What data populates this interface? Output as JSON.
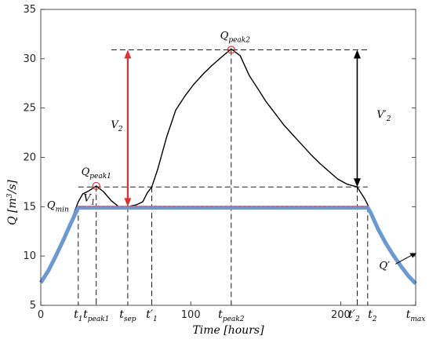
{
  "chart_data": {
    "type": "line",
    "xlabel": "Time [hours]",
    "ylabel": "Q [m³/s]",
    "xlim": [
      0,
      250
    ],
    "ylim": [
      5,
      35
    ],
    "y_ticks": [
      5,
      10,
      15,
      20,
      25,
      30,
      35
    ],
    "x_tick_labels": [
      {
        "x": 0,
        "text": "0"
      },
      {
        "x": 25,
        "text": "t1"
      },
      {
        "x": 37,
        "text": "tpeak1"
      },
      {
        "x": 58,
        "text": "tsep"
      },
      {
        "x": 74,
        "text": "t'1"
      },
      {
        "x": 100,
        "text": "100"
      },
      {
        "x": 127,
        "text": "tpeak2"
      },
      {
        "x": 200,
        "text": "200"
      },
      {
        "x": 211,
        "text": "t'2"
      },
      {
        "x": 218,
        "text": "t2"
      },
      {
        "x": 250,
        "text": "tmax"
      }
    ],
    "series": [
      {
        "color": "#000000",
        "x": [
          0,
          5,
          10,
          15,
          20,
          25,
          28,
          32,
          37,
          42,
          47,
          52,
          58,
          64,
          68,
          71,
          74,
          78,
          84,
          90,
          96,
          102,
          108,
          114,
          120,
          127,
          133,
          139,
          145,
          150,
          156,
          162,
          168,
          174,
          180,
          186,
          192,
          198,
          204,
          211,
          216,
          220,
          225,
          230,
          235,
          240,
          245,
          250
        ],
        "y": [
          7.5,
          8.7,
          10.2,
          11.8,
          13.5,
          15.5,
          16.3,
          16.6,
          17.1,
          16.5,
          15.6,
          15.0,
          15.0,
          15.2,
          15.5,
          16.4,
          17.0,
          18.8,
          22.1,
          24.8,
          26.2,
          27.4,
          28.4,
          29.3,
          30.1,
          31.0,
          30.3,
          28.3,
          26.9,
          25.7,
          24.5,
          23.3,
          22.3,
          21.3,
          20.3,
          19.4,
          18.6,
          17.8,
          17.3,
          17.0,
          15.8,
          14.6,
          12.9,
          11.5,
          10.3,
          9.2,
          8.2,
          7.4
        ]
      },
      {
        "color": "#6a9ad6",
        "x": [
          0,
          5,
          10,
          15,
          20,
          25,
          58,
          100,
          150,
          200,
          218,
          220,
          225,
          230,
          235,
          240,
          245,
          250
        ],
        "y": [
          7.3,
          8.5,
          10.0,
          11.6,
          13.3,
          14.9,
          14.9,
          14.9,
          14.9,
          14.9,
          14.9,
          14.4,
          12.7,
          11.3,
          10.1,
          9.0,
          8.0,
          7.2
        ]
      },
      {
        "color": "#e05a5a",
        "x": [
          25,
          58,
          100,
          150,
          218
        ],
        "y": [
          15.0,
          15.0,
          15.0,
          15.0,
          15.0
        ]
      }
    ],
    "markers": [
      {
        "x": 37,
        "y": 17.1,
        "color": "#e03030"
      },
      {
        "x": 127,
        "y": 30.9,
        "color": "#e03030"
      }
    ],
    "annotations": [
      {
        "text": "Qpeak1",
        "x": 37,
        "y": 17.1
      },
      {
        "text": "Qpeak2",
        "x": 127,
        "y": 30.9
      },
      {
        "text": "Qmin",
        "x": 25,
        "y": 15.0
      },
      {
        "text": "V1",
        "x": 35,
        "y": 15.8,
        "color": "#e03030"
      },
      {
        "text": "V2",
        "x": 58,
        "y": 23.0,
        "color": "#e03030"
      },
      {
        "text": "V'2",
        "x": 211,
        "y": 24.0,
        "color": "#000000"
      },
      {
        "text": "Q'",
        "x": 225,
        "y": 9.5
      }
    ],
    "guide_lines": [
      {
        "x": 25,
        "y_top": 15.0
      },
      {
        "x": 37,
        "y_top": 17.1
      },
      {
        "x": 58,
        "y_top": 15.0
      },
      {
        "x": 74,
        "y_top": 17.0
      },
      {
        "x": 127,
        "y_top": 30.9
      },
      {
        "x": 211,
        "y_top": 17.0
      },
      {
        "x": 218,
        "y_top": 15.0
      }
    ],
    "h_guides": [
      {
        "y": 30.9,
        "x_from": 47,
        "x_to": 218
      },
      {
        "y": 17.0,
        "x_from": 25,
        "x_to": 218
      }
    ],
    "arrows": [
      {
        "x": 58,
        "y_from": 15.0,
        "y_to": 30.9,
        "color": "#e03030",
        "label": "V2"
      },
      {
        "x": 211,
        "y_from": 17.0,
        "y_to": 30.9,
        "color": "#000000",
        "label": "V'2"
      }
    ]
  }
}
